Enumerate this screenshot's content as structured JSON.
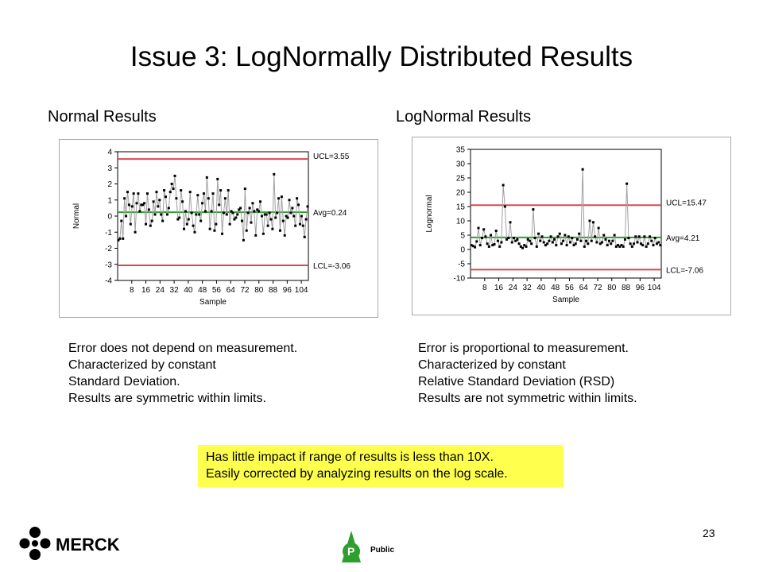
{
  "slide": {
    "title": "Issue 3: LogNormally Distributed Results",
    "page_number": "23",
    "logo_text": "MERCK",
    "classification_letter": "P",
    "classification_label": "Public"
  },
  "left": {
    "subtitle": "Normal Results",
    "description": [
      "Error does not depend on measurement.",
      "Characterized by constant",
      "Standard Deviation.",
      "Results are symmetric within limits."
    ]
  },
  "right": {
    "subtitle": "LogNormal Results",
    "description": [
      "Error is proportional to measurement.",
      "Characterized by constant",
      "Relative Standard Deviation (RSD)",
      "Results are not symmetric within limits."
    ]
  },
  "callout": {
    "lines": [
      "Has little impact if range of results is less than 10X.",
      "Easily corrected by analyzing results on the log scale."
    ]
  },
  "colors": {
    "ucl_lcl": "#d44b55",
    "avg": "#2e9e2e",
    "series": "#a0a0a0",
    "points": "#000000",
    "callout_bg": "#ffff4d"
  },
  "chart_data": [
    {
      "type": "line",
      "xlabel": "Sample",
      "ylabel": "Normal",
      "xticks": [
        8,
        16,
        24,
        32,
        40,
        48,
        56,
        64,
        72,
        80,
        88,
        96,
        104
      ],
      "ylim": [
        -4,
        4
      ],
      "yticks": [
        4,
        3,
        2,
        1,
        0,
        -1,
        -2,
        -3,
        -4
      ],
      "xlim": [
        0,
        108
      ],
      "control_lines": [
        {
          "name": "UCL",
          "label": "UCL=3.55",
          "value": 3.55,
          "kind": "limit"
        },
        {
          "name": "Avg",
          "label": "Avg=0.24",
          "value": 0.24,
          "kind": "avg"
        },
        {
          "name": "LCL",
          "label": "LCL=-3.06",
          "value": -3.06,
          "kind": "limit"
        }
      ],
      "values": [
        -1.5,
        -1.4,
        -0.3,
        -1.4,
        1.1,
        0.0,
        1.5,
        0.7,
        -0.5,
        0.6,
        1.4,
        -1.0,
        0.8,
        1.4,
        0.3,
        0.7,
        0.7,
        0.8,
        -0.5,
        1.4,
        0.4,
        -0.6,
        -0.3,
        0.9,
        0.1,
        1.5,
        0.6,
        1.0,
        0.1,
        -0.3,
        1.6,
        1.2,
        0.1,
        0.5,
        1.5,
        2.0,
        1.7,
        2.5,
        1.1,
        -0.2,
        -0.1,
        1.6,
        0.9,
        -0.8,
        0.3,
        -0.5,
        -0.2,
        1.5,
        0.2,
        -0.6,
        -1.0,
        0.1,
        1.3,
        0.1,
        -0.3,
        0.8,
        1.4,
        0.3,
        2.4,
        1.1,
        -0.8,
        0.3,
        1.4,
        -0.9,
        -0.5,
        2.3,
        0.7,
        1.6,
        -1.1,
        0.2,
        1.1,
        0.1,
        1.6,
        -0.5,
        0.3,
        0.2,
        -0.2,
        -0.1,
        0.1,
        0.4,
        0.5,
        -0.3,
        -1.5,
        1.7,
        -0.9,
        0.2,
        0.5,
        -0.4,
        0.8,
        0.3,
        -1.2,
        0.4,
        0.3,
        0.9,
        0.0,
        -1.1,
        0.1,
        0.1,
        -0.6,
        0.2,
        -0.2,
        -0.8,
        2.6,
        -0.1,
        0.2,
        1.1,
        -0.9,
        1.2,
        -0.3,
        -1.2,
        0.0,
        -0.1,
        1.0,
        0.2,
        0.5,
        0.0,
        -0.6,
        1.1,
        0.7,
        -0.5,
        0.0,
        -0.6,
        -1.3,
        -0.2,
        0.6
      ]
    },
    {
      "type": "line",
      "xlabel": "Sample",
      "ylabel": "Lognormal",
      "xticks": [
        8,
        16,
        24,
        32,
        40,
        48,
        56,
        64,
        72,
        80,
        88,
        96,
        104
      ],
      "ylim": [
        -10,
        35
      ],
      "yticks": [
        35,
        30,
        25,
        20,
        15,
        10,
        5,
        0,
        -5,
        -10
      ],
      "xlim": [
        0,
        108
      ],
      "control_lines": [
        {
          "name": "UCL",
          "label": "UCL=15.47",
          "value": 15.47,
          "kind": "limit"
        },
        {
          "name": "Avg",
          "label": "Avg=4.21",
          "value": 4.21,
          "kind": "avg"
        },
        {
          "name": "LCL",
          "label": "LCL=-7.06",
          "value": -7.06,
          "kind": "limit"
        }
      ],
      "values": [
        1.5,
        1.2,
        0.8,
        2.8,
        7.5,
        1.5,
        4.0,
        7.0,
        4.5,
        2.0,
        1.0,
        5.0,
        1.5,
        1.8,
        6.5,
        3.0,
        1.0,
        2.5,
        22.5,
        15.0,
        3.5,
        4.0,
        9.5,
        2.5,
        4.0,
        3.0,
        3.5,
        2.0,
        1.0,
        0.5,
        1.5,
        1.0,
        3.5,
        3.0,
        2.0,
        14.0,
        4.0,
        1.0,
        5.5,
        3.0,
        4.5,
        2.5,
        1.5,
        2.0,
        3.0,
        4.5,
        2.5,
        3.5,
        1.5,
        4.5,
        5.5,
        2.0,
        3.0,
        5.0,
        1.5,
        4.5,
        2.5,
        4.0,
        1.5,
        2.0,
        3.5,
        5.5,
        3.0,
        28.0,
        1.0,
        3.0,
        2.0,
        10.0,
        3.0,
        9.5,
        4.5,
        2.5,
        7.5,
        2.0,
        2.5,
        5.0,
        3.5,
        1.5,
        3.0,
        2.0,
        3.0,
        5.0,
        1.0,
        1.5,
        1.0,
        1.5,
        1.0,
        3.5,
        23.0,
        4.0,
        2.0,
        1.0,
        2.0,
        4.5,
        2.5,
        4.5,
        2.0,
        1.5,
        4.5,
        1.0,
        2.0,
        4.5,
        3.0,
        1.5,
        4.0,
        2.0,
        2.5,
        1.5
      ]
    }
  ]
}
